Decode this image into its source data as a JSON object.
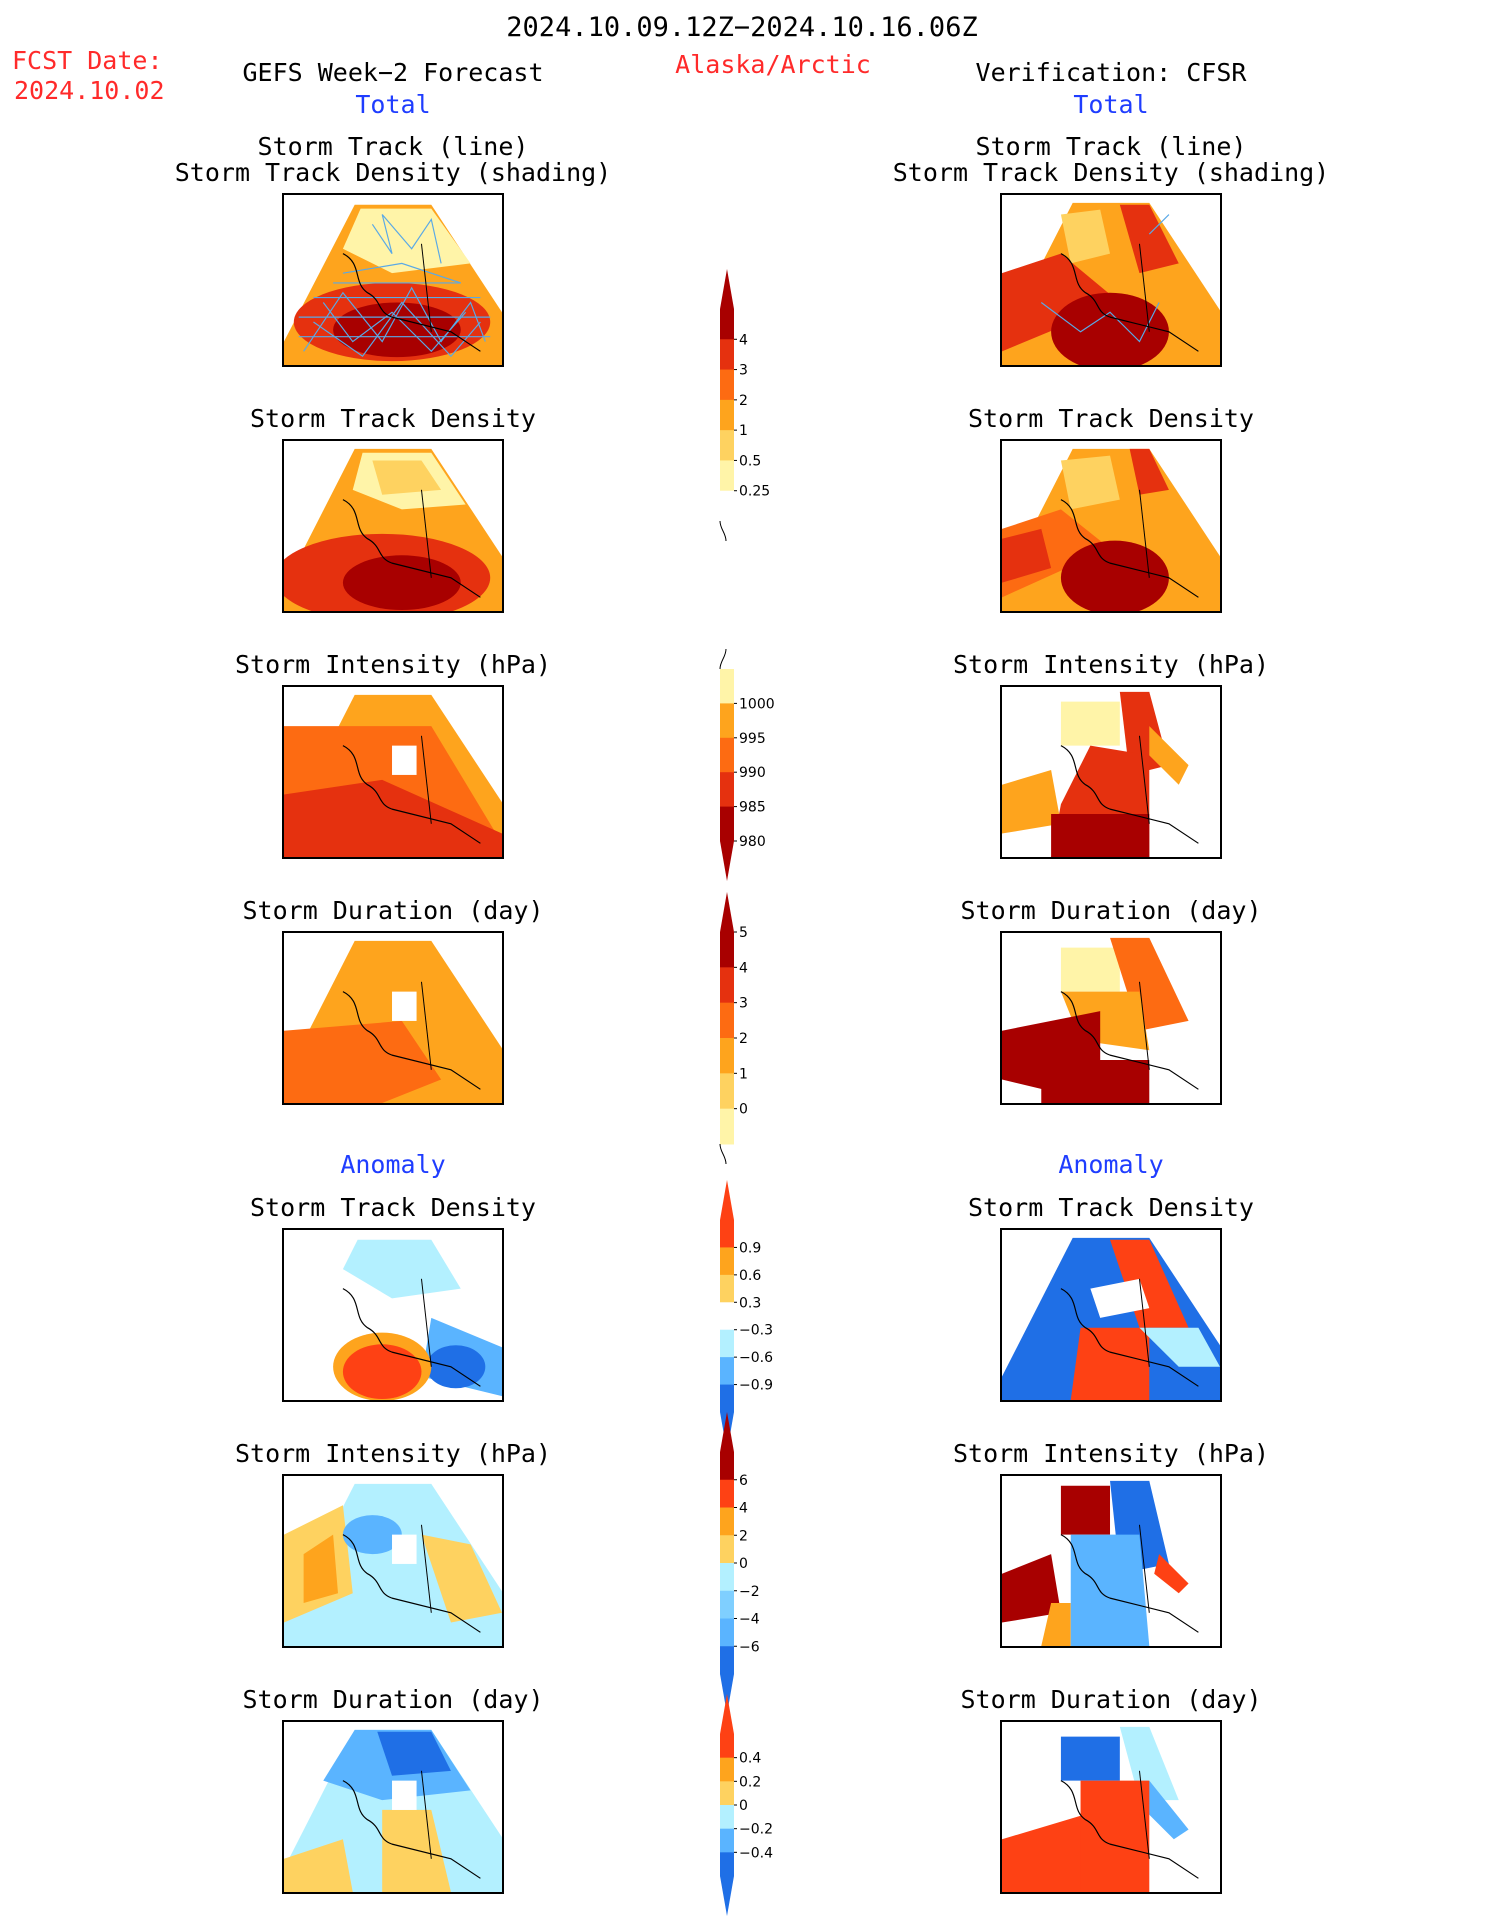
{
  "header": {
    "period": "2024.10.09.12Z−2024.10.16.06Z",
    "fcst_label": "FCST Date:",
    "fcst_date": "2024.10.02",
    "left_model": "GEFS Week−2 Forecast",
    "region": "Alaska/Arctic",
    "right_model": "Verification: CFSR",
    "left_total": "Total",
    "right_total": "Total",
    "left_anomaly": "Anomaly",
    "right_anomaly": "Anomaly"
  },
  "panels": {
    "track_line": "Storm Track (line)",
    "track_shading": "Storm Track Density (shading)",
    "density": "Storm Track Density",
    "intensity": "Storm Intensity (hPa)",
    "duration": "Storm Duration (day)"
  },
  "colorbars": {
    "density_total": {
      "ticks": [
        "0.25",
        "0.5",
        "1",
        "2",
        "3",
        "4"
      ],
      "colors": [
        "#ffffff",
        "#fff4a8",
        "#fed260",
        "#fea41d",
        "#fd6b12",
        "#e5310f",
        "#a80000"
      ],
      "arrow_top": "#a80000"
    },
    "intensity_total": {
      "ticks": [
        "1000",
        "995",
        "990",
        "985",
        "980"
      ],
      "colors": [
        "#fff4a8",
        "#fea41d",
        "#fd6b12",
        "#e5310f",
        "#a80000"
      ]
    },
    "duration_total": {
      "ticks": [
        "0",
        "1",
        "2",
        "3",
        "4",
        "5"
      ],
      "colors": [
        "#fff4a8",
        "#fed260",
        "#fea41d",
        "#fd6b12",
        "#e5310f",
        "#a80000"
      ]
    },
    "density_anom": {
      "ticks": [
        "0.9",
        "0.6",
        "0.3",
        "−0.3",
        "−0.6",
        "−0.9"
      ],
      "colors": [
        "#fe4114",
        "#fea41d",
        "#fed260",
        "#ffffff",
        "#b3f0ff",
        "#5ab4ff",
        "#1f6fe6"
      ]
    },
    "intensity_anom": {
      "ticks": [
        "6",
        "4",
        "2",
        "0",
        "−2",
        "−4",
        "−6"
      ],
      "colors": [
        "#a80000",
        "#fe4114",
        "#fea41d",
        "#fed260",
        "#b3f0ff",
        "#7fcfff",
        "#5ab4ff",
        "#1f6fe6"
      ]
    },
    "duration_anom": {
      "ticks": [
        "0.4",
        "0.2",
        "0",
        "−0.2",
        "−0.4"
      ],
      "colors": [
        "#fe4114",
        "#fea41d",
        "#fed260",
        "#b3f0ff",
        "#5ab4ff",
        "#1f6fe6"
      ]
    }
  }
}
